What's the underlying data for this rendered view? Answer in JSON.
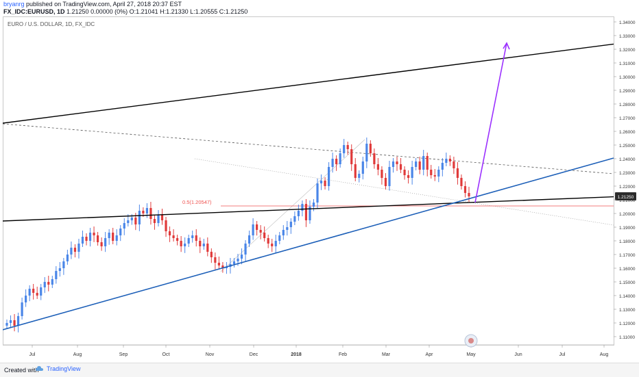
{
  "header": {
    "author": "bryanrg",
    "published": "published on TradingView.com, April 27, 2018 20:37 EST",
    "symbol": "FX_IDC:EURUSD, 1D",
    "ohlc": "1.21250 0.00000 (0%) O:1.21041 H:1.21330 L:1.20555 C:1.21250"
  },
  "chart": {
    "legend": "EURO / U.S. DOLLAR, 1D, FX_IDC",
    "fib_label": "0.5(1.20547)",
    "price_tag": "1.21250",
    "colors": {
      "up": "#4a86e8",
      "down": "#e03a3a",
      "trend": "#1c5fb8",
      "arrow": "#9b30ff",
      "fib": "#ef5350",
      "black_line": "#000000"
    }
  },
  "footer": {
    "made_with": "Created with",
    "brand": "TradingView"
  },
  "chart_data": {
    "type": "candlestick",
    "symbol": "EURUSD",
    "interval": "1D",
    "x_ticks": [
      "Jul",
      "Aug",
      "Sep",
      "Oct",
      "Nov",
      "Dec",
      "2018",
      "Feb",
      "Mar",
      "Apr",
      "May",
      "Jun",
      "Jul",
      "Aug"
    ],
    "y_ticks": [
      "1.34000",
      "1.33000",
      "1.32000",
      "1.31000",
      "1.30000",
      "1.29000",
      "1.28000",
      "1.27000",
      "1.26000",
      "1.25000",
      "1.24000",
      "1.23000",
      "1.22000",
      "1.21000",
      "1.20000",
      "1.19000",
      "1.18000",
      "1.17000",
      "1.16000",
      "1.15000",
      "1.14000",
      "1.13000",
      "1.12000",
      "1.11000"
    ],
    "ylim": [
      1.104,
      1.344
    ],
    "last_close": 1.2125,
    "fib_level": {
      "ratio": 0.5,
      "price": 1.20547
    },
    "closes": [
      1.12,
      1.122,
      1.118,
      1.125,
      1.135,
      1.14,
      1.145,
      1.142,
      1.14,
      1.146,
      1.15,
      1.148,
      1.152,
      1.158,
      1.16,
      1.165,
      1.17,
      1.175,
      1.172,
      1.178,
      1.183,
      1.18,
      1.186,
      1.184,
      1.179,
      1.176,
      1.182,
      1.186,
      1.18,
      1.184,
      1.189,
      1.193,
      1.195,
      1.197,
      1.192,
      1.202,
      1.2,
      1.204,
      1.196,
      1.193,
      1.199,
      1.195,
      1.187,
      1.184,
      1.182,
      1.18,
      1.176,
      1.178,
      1.182,
      1.184,
      1.18,
      1.176,
      1.178,
      1.172,
      1.168,
      1.164,
      1.162,
      1.16,
      1.161,
      1.163,
      1.165,
      1.167,
      1.17,
      1.178,
      1.184,
      1.192,
      1.188,
      1.186,
      1.182,
      1.178,
      1.176,
      1.18,
      1.184,
      1.188,
      1.19,
      1.194,
      1.198,
      1.202,
      1.207,
      1.195,
      1.205,
      1.208,
      1.222,
      1.224,
      1.22,
      1.234,
      1.24,
      1.236,
      1.244,
      1.25,
      1.247,
      1.236,
      1.226,
      1.229,
      1.238,
      1.251,
      1.244,
      1.236,
      1.232,
      1.226,
      1.22,
      1.234,
      1.238,
      1.236,
      1.232,
      1.228,
      1.226,
      1.234,
      1.238,
      1.232,
      1.242,
      1.232,
      1.228,
      1.227,
      1.232,
      1.237,
      1.24,
      1.238,
      1.233,
      1.226,
      1.22,
      1.215,
      1.2125
    ]
  }
}
